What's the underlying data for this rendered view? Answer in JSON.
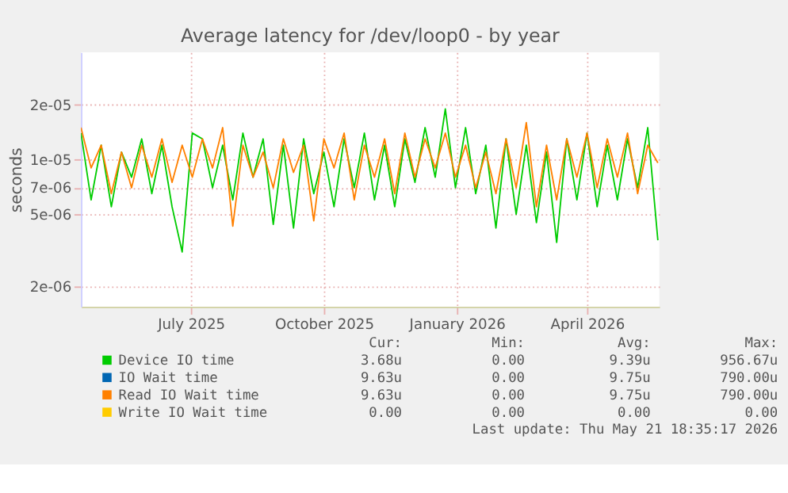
{
  "chart_data": {
    "type": "line",
    "title": "Average latency for /dev/loop0 - by year",
    "ylabel": "seconds",
    "x": [
      "2025-04-16",
      "2025-04-23",
      "2025-04-30",
      "2025-05-07",
      "2025-05-14",
      "2025-05-21",
      "2025-05-28",
      "2025-06-04",
      "2025-06-11",
      "2025-06-18",
      "2025-06-25",
      "2025-07-02",
      "2025-07-09",
      "2025-07-16",
      "2025-07-23",
      "2025-07-30",
      "2025-08-06",
      "2025-08-13",
      "2025-08-20",
      "2025-08-27",
      "2025-09-03",
      "2025-09-10",
      "2025-09-17",
      "2025-09-24",
      "2025-10-01",
      "2025-10-08",
      "2025-10-15",
      "2025-10-22",
      "2025-10-29",
      "2025-11-05",
      "2025-11-12",
      "2025-11-19",
      "2025-11-26",
      "2025-12-03",
      "2025-12-10",
      "2025-12-17",
      "2025-12-24",
      "2025-12-31",
      "2026-01-07",
      "2026-01-14",
      "2026-01-21",
      "2026-01-28",
      "2026-02-04",
      "2026-02-11",
      "2026-02-18",
      "2026-02-25",
      "2026-03-04",
      "2026-03-11",
      "2026-03-18",
      "2026-03-25",
      "2026-04-01",
      "2026-04-08",
      "2026-04-15",
      "2026-04-22",
      "2026-04-29",
      "2026-05-06",
      "2026-05-13",
      "2026-05-20"
    ],
    "series": [
      {
        "name": "Device IO time",
        "color": "#00cc00",
        "values": [
          1.4e-05,
          6e-06,
          1.2e-05,
          5.5e-06,
          1.1e-05,
          8e-06,
          1.3e-05,
          6.5e-06,
          1.2e-05,
          5.5e-06,
          3.1e-06,
          1.4e-05,
          1.3e-05,
          7e-06,
          1.2e-05,
          6e-06,
          1.4e-05,
          8e-06,
          1.3e-05,
          4.4e-06,
          1.2e-05,
          4.2e-06,
          1.3e-05,
          6.5e-06,
          1.1e-05,
          5.5e-06,
          1.3e-05,
          7e-06,
          1.4e-05,
          6e-06,
          1.2e-05,
          5.5e-06,
          1.3e-05,
          7.5e-06,
          1.5e-05,
          8e-06,
          1.9e-05,
          7e-06,
          1.5e-05,
          6.5e-06,
          1.2e-05,
          4.2e-06,
          1.3e-05,
          5e-06,
          1.2e-05,
          4.5e-06,
          1.1e-05,
          3.5e-06,
          1.3e-05,
          6e-06,
          1.4e-05,
          5.5e-06,
          1.2e-05,
          6e-06,
          1.3e-05,
          7e-06,
          1.5e-05,
          3.6e-06
        ]
      },
      {
        "name": "IO Wait time",
        "color": "#0066b3",
        "values": [
          null,
          null,
          null,
          null,
          null,
          null,
          null,
          null,
          null,
          null,
          null,
          null,
          null,
          null,
          null,
          null,
          null,
          null,
          null,
          null,
          null,
          null,
          null,
          null,
          null,
          null,
          null,
          null,
          null,
          null,
          null,
          null,
          null,
          null,
          null,
          null,
          null,
          null,
          null,
          null,
          null,
          null,
          null,
          null,
          null,
          null,
          null,
          null,
          null,
          null,
          null,
          null,
          null,
          null,
          null,
          null,
          null,
          null
        ]
      },
      {
        "name": "Read IO Wait time",
        "color": "#ff8000",
        "values": [
          1.5e-05,
          9e-06,
          1.2e-05,
          6.5e-06,
          1.1e-05,
          7e-06,
          1.2e-05,
          8e-06,
          1.3e-05,
          7.5e-06,
          1.2e-05,
          8e-06,
          1.3e-05,
          9e-06,
          1.5e-05,
          4.3e-06,
          1.2e-05,
          8e-06,
          1.1e-05,
          7e-06,
          1.3e-05,
          8.5e-06,
          1.2e-05,
          4.6e-06,
          1.3e-05,
          9e-06,
          1.4e-05,
          6e-06,
          1.2e-05,
          8e-06,
          1.3e-05,
          6.5e-06,
          1.4e-05,
          8e-06,
          1.3e-05,
          9e-06,
          1.4e-05,
          8e-06,
          1.2e-05,
          7e-06,
          1.1e-05,
          6.5e-06,
          1.3e-05,
          7e-06,
          1.6e-05,
          5.5e-06,
          1.2e-05,
          6e-06,
          1.3e-05,
          8e-06,
          1.4e-05,
          7e-06,
          1.3e-05,
          8e-06,
          1.4e-05,
          6.5e-06,
          1.2e-05,
          9.6e-06
        ]
      },
      {
        "name": "Write IO Wait time",
        "color": "#ffcc00",
        "values": [
          null,
          null,
          null,
          null,
          null,
          null,
          null,
          null,
          null,
          null,
          null,
          null,
          null,
          null,
          null,
          null,
          null,
          null,
          null,
          null,
          null,
          null,
          null,
          null,
          null,
          null,
          null,
          null,
          null,
          null,
          null,
          null,
          null,
          null,
          null,
          null,
          null,
          null,
          null,
          null,
          null,
          null,
          null,
          null,
          null,
          null,
          null,
          null,
          null,
          null,
          null,
          null,
          null,
          null,
          null,
          null,
          null,
          null
        ]
      }
    ],
    "xlim": [
      "2025-04-16",
      "2026-05-21"
    ],
    "xticks": [
      {
        "value": "2025-07-01",
        "label": "July 2025"
      },
      {
        "value": "2025-10-01",
        "label": "October 2025"
      },
      {
        "value": "2026-01-01",
        "label": "January 2026"
      },
      {
        "value": "2026-04-01",
        "label": "April 2026"
      }
    ],
    "ylim": [
      1.55e-06,
      3.9e-05
    ],
    "yticks": [
      {
        "value": 2e-06,
        "label": "2e-06"
      },
      {
        "value": 5e-06,
        "label": "5e-06"
      },
      {
        "value": 7e-06,
        "label": "7e-06"
      },
      {
        "value": 1e-05,
        "label": "1e-05"
      },
      {
        "value": 2e-05,
        "label": "2e-05"
      }
    ],
    "log": true,
    "grid": true,
    "legend": "bottom",
    "marker": "none",
    "line_style": "solid",
    "annotations": [
      "Cur:",
      "Min:",
      "Avg:",
      "Max:",
      "3.68u",
      "0.00",
      "9.39u",
      "956.67u",
      "9.63u",
      "0.00",
      "9.75u",
      "790.00u",
      "9.63u",
      "0.00",
      "9.75u",
      "790.00u",
      "0.00",
      "0.00",
      "0.00",
      "0.00",
      "Last update: Thu May 21 18:35:17 2026"
    ]
  }
}
